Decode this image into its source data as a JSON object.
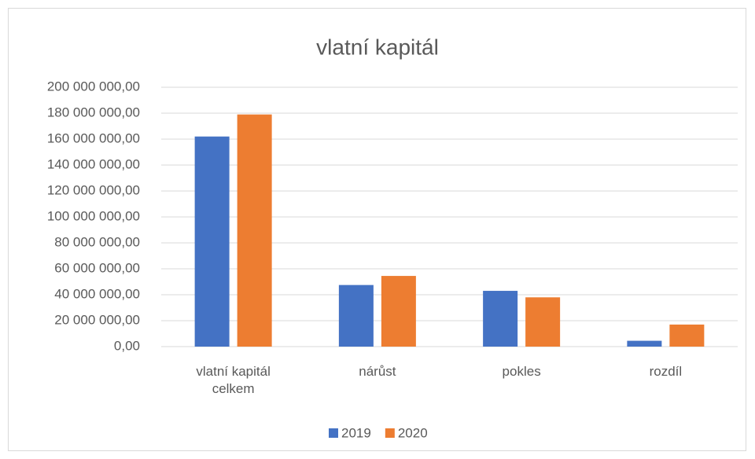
{
  "chart_data": {
    "type": "bar",
    "title": "vlatní kapitál",
    "categories": [
      "vlatní kapitál celkem",
      "nárůst",
      "pokles",
      "rozdíl"
    ],
    "series": [
      {
        "name": "2019",
        "color": "#4472c4",
        "values": [
          162000000,
          47500000,
          43000000,
          4500000
        ]
      },
      {
        "name": "2020",
        "color": "#ed7d31",
        "values": [
          179000000,
          54500000,
          38000000,
          17000000
        ]
      }
    ],
    "ylim": [
      0,
      200000000
    ],
    "yticks": [
      {
        "value": 0,
        "label": "0,00"
      },
      {
        "value": 20000000,
        "label": "20 000 000,00"
      },
      {
        "value": 40000000,
        "label": "40 000 000,00"
      },
      {
        "value": 60000000,
        "label": "60 000 000,00"
      },
      {
        "value": 80000000,
        "label": "80 000 000,00"
      },
      {
        "value": 100000000,
        "label": "100 000 000,00"
      },
      {
        "value": 120000000,
        "label": "120 000 000,00"
      },
      {
        "value": 140000000,
        "label": "140 000 000,00"
      },
      {
        "value": 160000000,
        "label": "160 000 000,00"
      },
      {
        "value": 180000000,
        "label": "180 000 000,00"
      },
      {
        "value": 200000000,
        "label": "200 000 000,00"
      }
    ],
    "grid": true,
    "legend": "bottom"
  }
}
